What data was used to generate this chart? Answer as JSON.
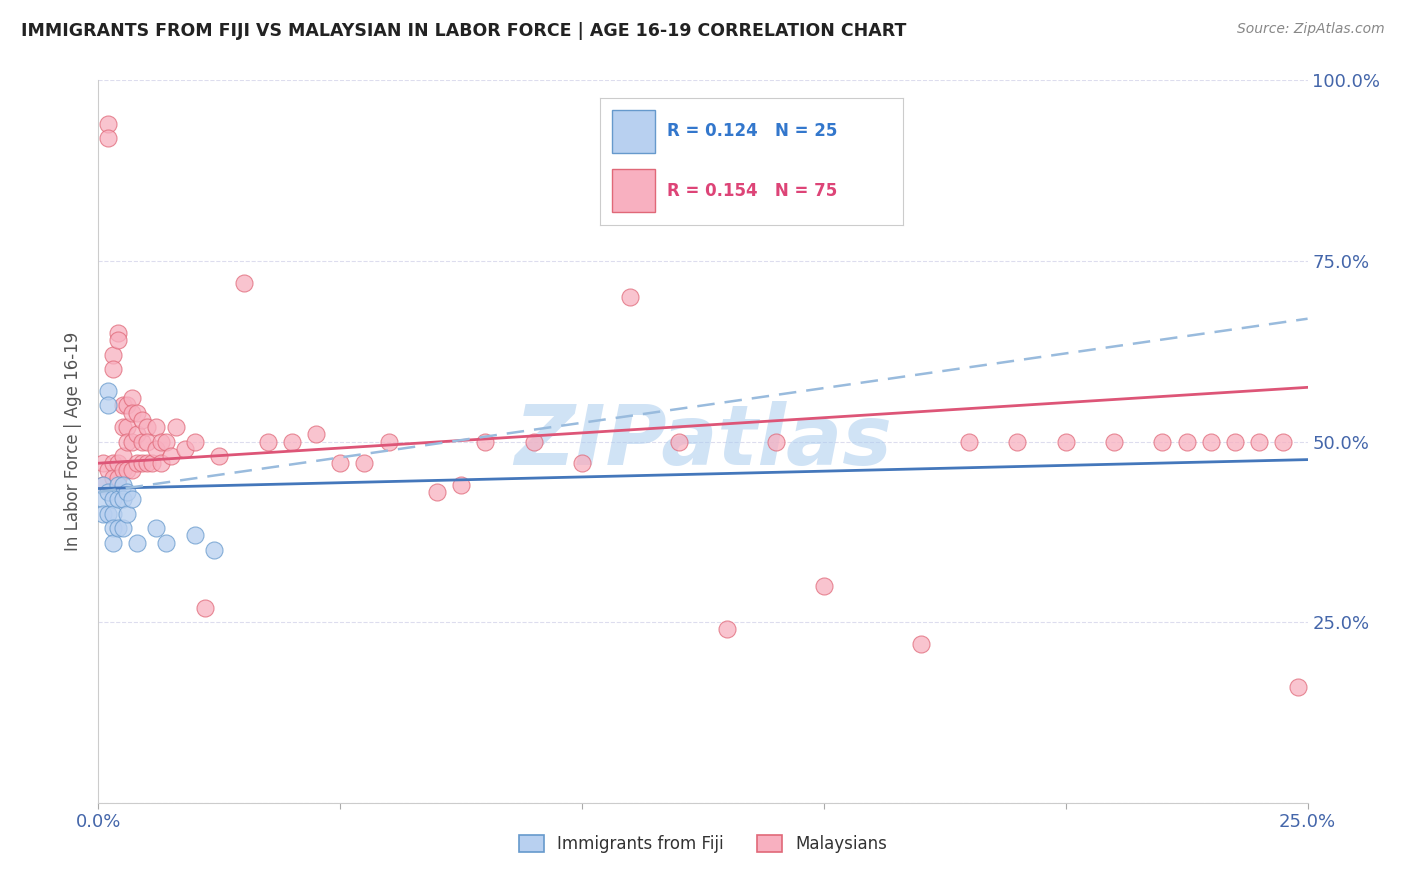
{
  "title": "IMMIGRANTS FROM FIJI VS MALAYSIAN IN LABOR FORCE | AGE 16-19 CORRELATION CHART",
  "source": "Source: ZipAtlas.com",
  "ylabel": "In Labor Force | Age 16-19",
  "ylabel_right_ticks": [
    "25.0%",
    "50.0%",
    "75.0%",
    "100.0%"
  ],
  "legend_label_fiji": "Immigrants from Fiji",
  "legend_label_malaysian": "Malaysians",
  "fiji_color": "#b8d0f0",
  "fiji_edge_color": "#6699cc",
  "malaysian_color": "#f8b0c0",
  "malaysian_edge_color": "#e06878",
  "fiji_trend_color": "#4477bb",
  "malaysian_trend_color": "#dd5577",
  "dashed_trend_color": "#99bbdd",
  "watermark": "ZIPatlas",
  "watermark_color": "#aaccee",
  "fiji_R": 0.124,
  "fiji_N": 25,
  "malaysian_R": 0.154,
  "malaysian_N": 75,
  "xlim": [
    0.0,
    0.25
  ],
  "ylim": [
    0.0,
    1.0
  ],
  "fiji_x": [
    0.001,
    0.001,
    0.001,
    0.002,
    0.002,
    0.002,
    0.002,
    0.003,
    0.003,
    0.003,
    0.003,
    0.004,
    0.004,
    0.004,
    0.005,
    0.005,
    0.005,
    0.006,
    0.006,
    0.007,
    0.008,
    0.012,
    0.014,
    0.02,
    0.024
  ],
  "fiji_y": [
    0.44,
    0.42,
    0.4,
    0.57,
    0.55,
    0.43,
    0.4,
    0.42,
    0.4,
    0.38,
    0.36,
    0.44,
    0.42,
    0.38,
    0.44,
    0.42,
    0.38,
    0.43,
    0.4,
    0.42,
    0.36,
    0.38,
    0.36,
    0.37,
    0.35
  ],
  "malaysian_x": [
    0.001,
    0.001,
    0.002,
    0.002,
    0.002,
    0.003,
    0.003,
    0.003,
    0.003,
    0.004,
    0.004,
    0.004,
    0.004,
    0.005,
    0.005,
    0.005,
    0.005,
    0.006,
    0.006,
    0.006,
    0.006,
    0.007,
    0.007,
    0.007,
    0.007,
    0.008,
    0.008,
    0.008,
    0.009,
    0.009,
    0.009,
    0.01,
    0.01,
    0.01,
    0.011,
    0.012,
    0.012,
    0.013,
    0.013,
    0.014,
    0.015,
    0.016,
    0.018,
    0.02,
    0.022,
    0.025,
    0.03,
    0.035,
    0.04,
    0.045,
    0.05,
    0.055,
    0.06,
    0.07,
    0.075,
    0.08,
    0.09,
    0.1,
    0.11,
    0.12,
    0.13,
    0.14,
    0.15,
    0.17,
    0.18,
    0.19,
    0.2,
    0.21,
    0.22,
    0.225,
    0.23,
    0.235,
    0.24,
    0.245,
    0.248
  ],
  "malaysian_y": [
    0.47,
    0.44,
    0.94,
    0.92,
    0.46,
    0.62,
    0.6,
    0.47,
    0.45,
    0.65,
    0.64,
    0.47,
    0.45,
    0.55,
    0.52,
    0.48,
    0.46,
    0.55,
    0.52,
    0.5,
    0.46,
    0.56,
    0.54,
    0.5,
    0.46,
    0.54,
    0.51,
    0.47,
    0.53,
    0.5,
    0.47,
    0.52,
    0.5,
    0.47,
    0.47,
    0.52,
    0.49,
    0.5,
    0.47,
    0.5,
    0.48,
    0.52,
    0.49,
    0.5,
    0.27,
    0.48,
    0.72,
    0.5,
    0.5,
    0.51,
    0.47,
    0.47,
    0.5,
    0.43,
    0.44,
    0.5,
    0.5,
    0.47,
    0.7,
    0.5,
    0.24,
    0.5,
    0.3,
    0.22,
    0.5,
    0.5,
    0.5,
    0.5,
    0.5,
    0.5,
    0.5,
    0.5,
    0.5,
    0.5,
    0.16
  ]
}
